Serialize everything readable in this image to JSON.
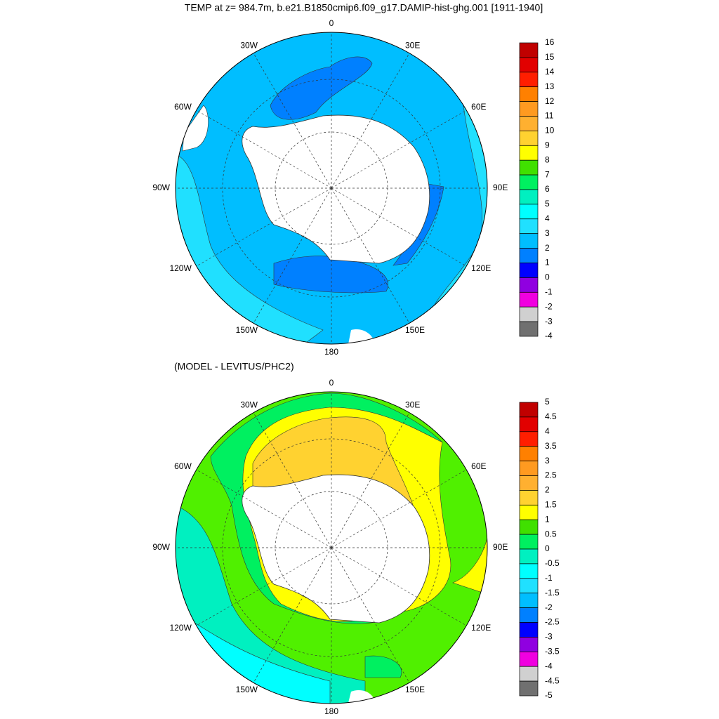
{
  "title": "TEMP at z= 984.7m, b.e21.B1850cmip6.f09_g17.DAMIP-hist-ghg.001 [1911-1940]",
  "maps": [
    {
      "longitude_labels": [
        "0",
        "30E",
        "60E",
        "90E",
        "120E",
        "150E",
        "180",
        "150W",
        "120W",
        "90W",
        "60W",
        "30W"
      ],
      "colorbar": {
        "labels": [
          "16",
          "15",
          "14",
          "13",
          "12",
          "11",
          "10",
          "9",
          "8",
          "7",
          "6",
          "5",
          "4",
          "3",
          "2",
          "1",
          "0",
          "-1",
          "-2",
          "-3",
          "-4"
        ],
        "colors": [
          "#c00000",
          "#e20000",
          "#ff1e00",
          "#ff8000",
          "#ff9a20",
          "#ffb030",
          "#ffd230",
          "#ffff00",
          "#40e000",
          "#00f060",
          "#00f0c0",
          "#00ffff",
          "#20e0ff",
          "#00beff",
          "#0080ff",
          "#0000ff",
          "#9000e0",
          "#f000e0",
          "#d0d0d0",
          "#707070"
        ]
      }
    },
    {
      "subtitle": "(MODEL - LEVITUS/PHC2)",
      "longitude_labels": [
        "0",
        "30E",
        "60E",
        "90E",
        "120E",
        "150E",
        "180",
        "150W",
        "120W",
        "90W",
        "60W",
        "30W"
      ],
      "colorbar": {
        "labels": [
          "5",
          "4.5",
          "4",
          "3.5",
          "3",
          "2.5",
          "2",
          "1.5",
          "1",
          "0.5",
          "0",
          "-0.5",
          "-1",
          "-1.5",
          "-2",
          "-2.5",
          "-3",
          "-3.5",
          "-4",
          "-4.5",
          "-5"
        ],
        "colors": [
          "#c00000",
          "#e20000",
          "#ff1e00",
          "#ff8000",
          "#ff9a20",
          "#ffb030",
          "#ffd230",
          "#ffff00",
          "#40e000",
          "#00f060",
          "#00f0c0",
          "#00ffff",
          "#20e0ff",
          "#00beff",
          "#0080ff",
          "#0000ff",
          "#9000e0",
          "#f000e0",
          "#d0d0d0",
          "#707070"
        ]
      }
    }
  ]
}
